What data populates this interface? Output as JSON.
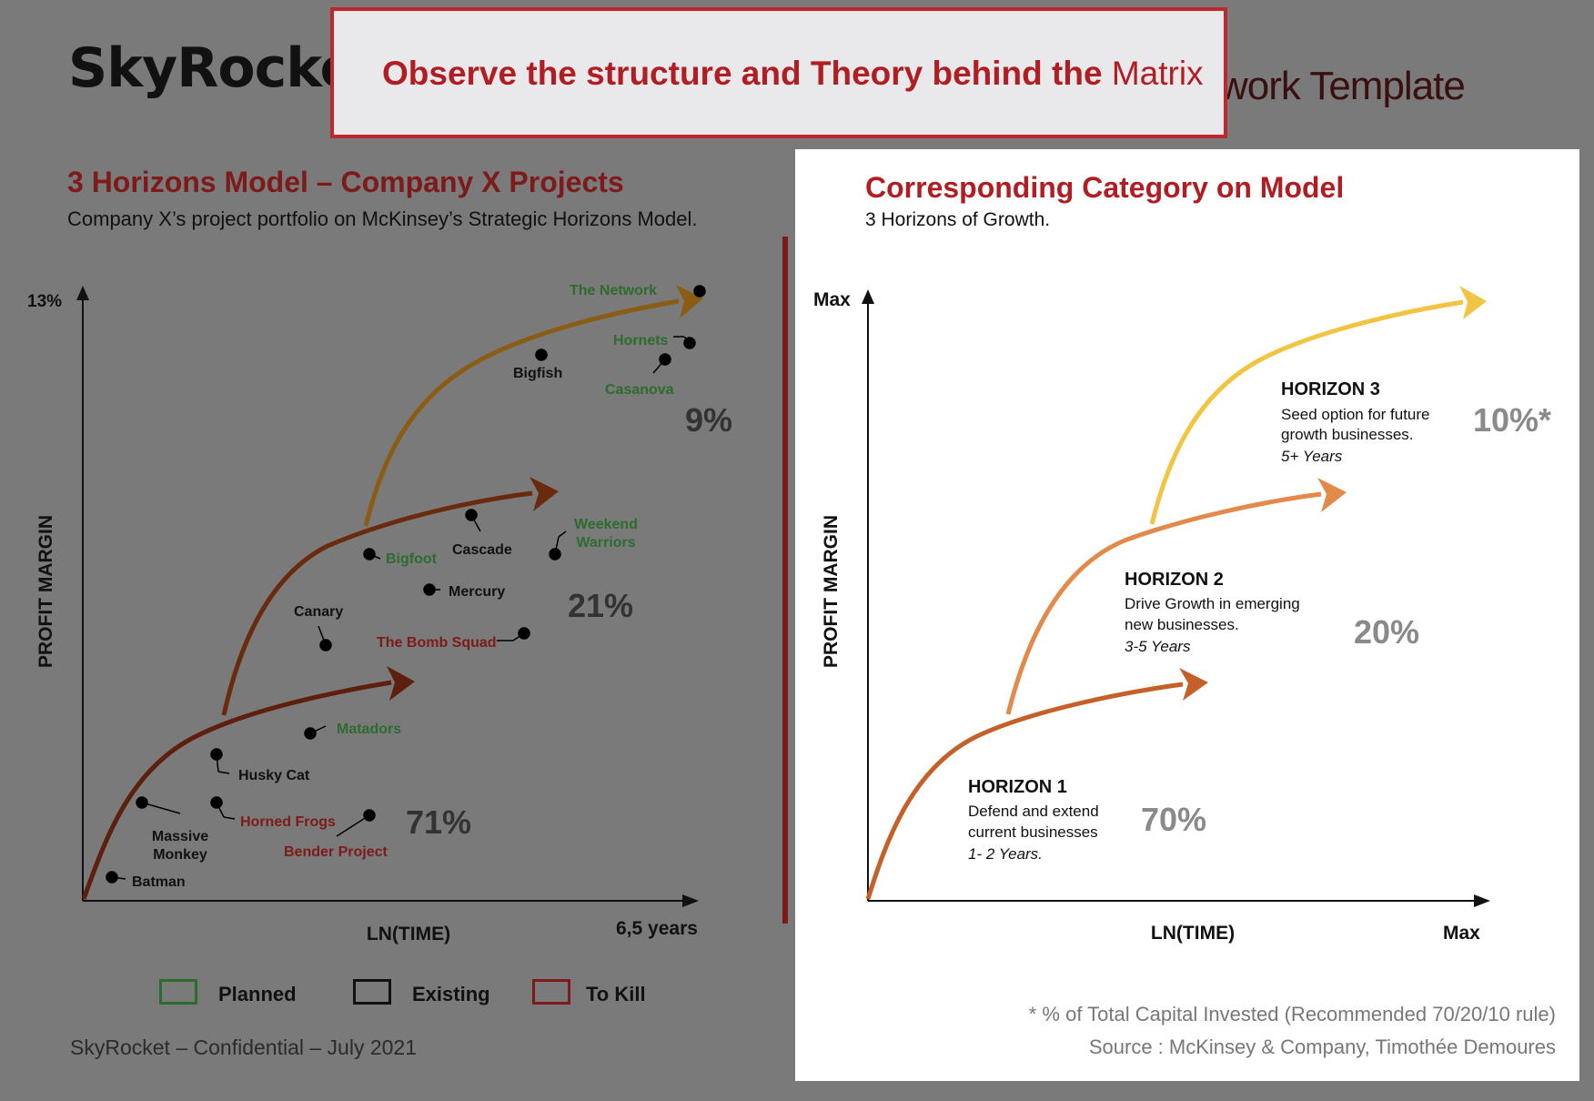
{
  "header": {
    "logo_text": "SkyRocket",
    "background_title": "work Template"
  },
  "overlay": {
    "text_bold": "Observe the structure and Theory behind the",
    "text_light": "Matrix"
  },
  "left_panel": {
    "title": "3 Horizons Model – Company X Projects",
    "subtitle": "Company X’s project portfolio on McKinsey’s Strategic Horizons Model.",
    "y_axis_label": "PROFIT MARGIN",
    "x_axis_label": "LN(TIME)",
    "y_max_label": "13%",
    "x_max_label": "6,5 years",
    "percentages": [
      "71%",
      "21%",
      "9%"
    ],
    "projects": [
      {
        "name": "The Network",
        "status": "planned"
      },
      {
        "name": "Hornets",
        "status": "planned"
      },
      {
        "name": "Bigfish",
        "status": "existing"
      },
      {
        "name": "Casanova",
        "status": "planned"
      },
      {
        "name": "Weekend",
        "status": "planned"
      },
      {
        "name": "Warriors",
        "status": "planned"
      },
      {
        "name": "Cascade",
        "status": "existing"
      },
      {
        "name": "Bigfoot",
        "status": "planned"
      },
      {
        "name": "Mercury",
        "status": "existing"
      },
      {
        "name": "Canary",
        "status": "existing"
      },
      {
        "name": "The Bomb Squad",
        "status": "kill"
      },
      {
        "name": "Matadors",
        "status": "planned"
      },
      {
        "name": "Husky Cat",
        "status": "existing"
      },
      {
        "name": "Massive",
        "status": "existing"
      },
      {
        "name": "Monkey",
        "status": "existing"
      },
      {
        "name": "Horned Frogs",
        "status": "kill"
      },
      {
        "name": "Bender Project",
        "status": "kill"
      },
      {
        "name": "Batman",
        "status": "existing"
      }
    ],
    "legend": [
      {
        "label": "Planned",
        "color": "#2e6b2e"
      },
      {
        "label": "Existing",
        "color": "#111111"
      },
      {
        "label": "To Kill",
        "color": "#7d1a1a"
      }
    ]
  },
  "right_panel": {
    "title": "Corresponding Category on Model",
    "subtitle": "3 Horizons of Growth.",
    "y_axis_label": "PROFIT MARGIN",
    "x_axis_label": "LN(TIME)",
    "y_max_label": "Max",
    "x_max_label": "Max",
    "horizons": [
      {
        "title": "HORIZON 1",
        "line1": "Defend and extend",
        "line2": "current businesses",
        "years": "1- 2 Years.",
        "percent": "70%",
        "color": "#c46128"
      },
      {
        "title": "HORIZON 2",
        "line1": "Drive Growth in emerging",
        "line2": "new businesses.",
        "years": "3-5 Years",
        "percent": "20%",
        "color": "#e3894a"
      },
      {
        "title": "HORIZON 3",
        "line1": "Seed option for future",
        "line2": "growth businesses.",
        "years": "5+ Years",
        "percent": "10%*",
        "color": "#f2c443"
      }
    ],
    "note": "* % of Total Capital Invested (Recommended 70/20/10 rule)",
    "source": "Source : McKinsey & Company, Timothée Demoures"
  },
  "footer": {
    "text": "SkyRocket – Confidential – July 2021"
  }
}
